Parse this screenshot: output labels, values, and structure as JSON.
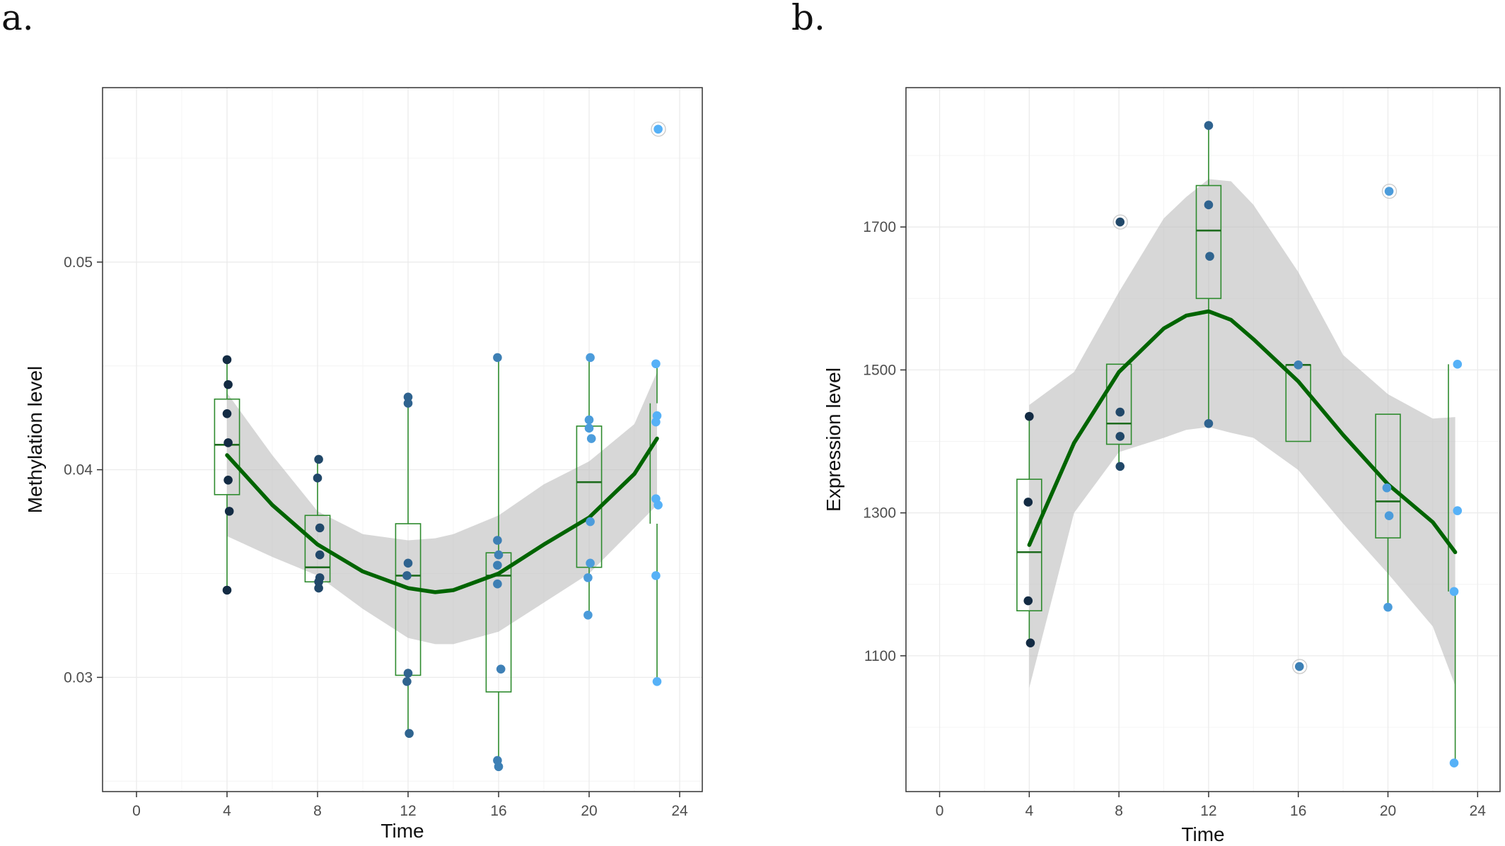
{
  "chart_data": [
    {
      "type": "scatter",
      "panel_label": "a.",
      "xlabel": "Time",
      "ylabel": "Methylation level",
      "xlim": [
        -1.5,
        25
      ],
      "ylim": [
        0.0245,
        0.0584
      ],
      "x_ticks": [
        0,
        4,
        8,
        12,
        16,
        20,
        24
      ],
      "y_ticks": [
        0.03,
        0.04,
        0.05
      ],
      "y_tick_labels": [
        "0.03",
        "0.04",
        "0.05"
      ],
      "grid": true,
      "boxplots": [
        {
          "x": 4,
          "low": 0.0342,
          "q1": 0.0388,
          "median": 0.0412,
          "q3": 0.0434,
          "high": 0.0453
        },
        {
          "x": 8,
          "low": 0.0343,
          "q1": 0.0346,
          "median": 0.0353,
          "q3": 0.0378,
          "high": 0.0405
        },
        {
          "x": 12,
          "low": 0.0273,
          "q1": 0.0301,
          "median": 0.0349,
          "q3": 0.0374,
          "high": 0.0435
        },
        {
          "x": 16,
          "low": 0.0257,
          "q1": 0.0293,
          "median": 0.0349,
          "q3": 0.036,
          "high": 0.0454
        },
        {
          "x": 20,
          "low": 0.033,
          "q1": 0.0353,
          "median": 0.0394,
          "q3": 0.0421,
          "high": 0.0453
        },
        {
          "x": 23,
          "low": 0.0298,
          "q1": 0.0374,
          "median": 0.0385,
          "q3": 0.0432,
          "high": 0.0451
        }
      ],
      "outliers": [
        {
          "x": 23,
          "y": 0.0564
        }
      ],
      "points": [
        {
          "x": 4.0,
          "y": 0.0453
        },
        {
          "x": 4.05,
          "y": 0.0441
        },
        {
          "x": 4.0,
          "y": 0.0427
        },
        {
          "x": 4.05,
          "y": 0.0413
        },
        {
          "x": 4.05,
          "y": 0.0395
        },
        {
          "x": 4.1,
          "y": 0.038
        },
        {
          "x": 4.0,
          "y": 0.0342
        },
        {
          "x": 8.05,
          "y": 0.0405
        },
        {
          "x": 8.0,
          "y": 0.0396
        },
        {
          "x": 8.1,
          "y": 0.0372
        },
        {
          "x": 8.1,
          "y": 0.0359
        },
        {
          "x": 8.1,
          "y": 0.0348
        },
        {
          "x": 8.05,
          "y": 0.0346
        },
        {
          "x": 8.05,
          "y": 0.0343
        },
        {
          "x": 12.0,
          "y": 0.0435
        },
        {
          "x": 12.0,
          "y": 0.0432
        },
        {
          "x": 12.0,
          "y": 0.0355
        },
        {
          "x": 11.95,
          "y": 0.0349
        },
        {
          "x": 12.0,
          "y": 0.0302
        },
        {
          "x": 11.95,
          "y": 0.0298
        },
        {
          "x": 12.05,
          "y": 0.0273
        },
        {
          "x": 15.95,
          "y": 0.0454
        },
        {
          "x": 15.95,
          "y": 0.0366
        },
        {
          "x": 16.0,
          "y": 0.0359
        },
        {
          "x": 15.95,
          "y": 0.0354
        },
        {
          "x": 15.95,
          "y": 0.0345
        },
        {
          "x": 16.1,
          "y": 0.0304
        },
        {
          "x": 15.95,
          "y": 0.026
        },
        {
          "x": 16.0,
          "y": 0.0257
        },
        {
          "x": 20.05,
          "y": 0.0454
        },
        {
          "x": 20.0,
          "y": 0.0424
        },
        {
          "x": 20.0,
          "y": 0.042
        },
        {
          "x": 20.1,
          "y": 0.0415
        },
        {
          "x": 20.05,
          "y": 0.0375
        },
        {
          "x": 20.05,
          "y": 0.0355
        },
        {
          "x": 19.95,
          "y": 0.0348
        },
        {
          "x": 19.95,
          "y": 0.033
        },
        {
          "x": 23.05,
          "y": 0.0564
        },
        {
          "x": 22.95,
          "y": 0.0451
        },
        {
          "x": 23.0,
          "y": 0.0426
        },
        {
          "x": 22.95,
          "y": 0.0423
        },
        {
          "x": 22.95,
          "y": 0.0386
        },
        {
          "x": 23.05,
          "y": 0.0383
        },
        {
          "x": 22.95,
          "y": 0.0349
        },
        {
          "x": 23.0,
          "y": 0.0298
        }
      ],
      "smooth": {
        "x": [
          4,
          6,
          8,
          10,
          12,
          13.2,
          14,
          16,
          18,
          20,
          22,
          23
        ],
        "y": [
          0.0407,
          0.0383,
          0.0364,
          0.0351,
          0.0343,
          0.0341,
          0.0342,
          0.035,
          0.0364,
          0.0377,
          0.0398,
          0.0415
        ],
        "upper": [
          0.0437,
          0.0407,
          0.038,
          0.0369,
          0.0366,
          0.0367,
          0.0369,
          0.0378,
          0.0393,
          0.0404,
          0.0422,
          0.0447
        ],
        "lower": [
          0.0368,
          0.0358,
          0.0349,
          0.0333,
          0.0319,
          0.0316,
          0.0316,
          0.0322,
          0.0336,
          0.035,
          0.0372,
          0.0383
        ]
      },
      "colors": {
        "smooth": "#006400",
        "band": "#bdbdbd",
        "box": "#2e8b2e",
        "point_early": "#132b43",
        "point_late": "#56b1f7"
      }
    },
    {
      "type": "scatter",
      "panel_label": "b.",
      "xlabel": "Time",
      "ylabel": "Expression level",
      "xlim": [
        -1.5,
        25
      ],
      "ylim": [
        910,
        1895
      ],
      "x_ticks": [
        0,
        4,
        8,
        12,
        16,
        20,
        24
      ],
      "y_ticks": [
        1100,
        1300,
        1500,
        1700
      ],
      "y_tick_labels": [
        "1100",
        "1300",
        "1500",
        "1700"
      ],
      "grid": true,
      "boxplots": [
        {
          "x": 4,
          "low": 1118,
          "q1": 1163,
          "median": 1245,
          "q3": 1347,
          "high": 1435
        },
        {
          "x": 8,
          "low": 1365,
          "q1": 1396,
          "median": 1425,
          "q3": 1508,
          "high": 1508
        },
        {
          "x": 12,
          "low": 1425,
          "q1": 1600,
          "median": 1695,
          "q3": 1758,
          "high": 1842
        },
        {
          "x": 16,
          "low": 1400,
          "q1": 1400,
          "median": 1507,
          "q3": 1507,
          "high": 1507
        },
        {
          "x": 20,
          "low": 1168,
          "q1": 1265,
          "median": 1316,
          "q3": 1438,
          "high": 1438
        },
        {
          "x": 23,
          "low": 950,
          "q1": 1190,
          "median": 1303,
          "q3": 1508,
          "high": 1508
        }
      ],
      "outliers": [
        {
          "x": 8,
          "y": 1707
        },
        {
          "x": 20,
          "y": 1750
        },
        {
          "x": 16,
          "y": 1085
        }
      ],
      "points": [
        {
          "x": 4.0,
          "y": 1435
        },
        {
          "x": 3.95,
          "y": 1315
        },
        {
          "x": 3.95,
          "y": 1177
        },
        {
          "x": 4.05,
          "y": 1118
        },
        {
          "x": 8.05,
          "y": 1707
        },
        {
          "x": 8.05,
          "y": 1441
        },
        {
          "x": 8.05,
          "y": 1407
        },
        {
          "x": 8.05,
          "y": 1365
        },
        {
          "x": 12.0,
          "y": 1842
        },
        {
          "x": 12.0,
          "y": 1731
        },
        {
          "x": 12.05,
          "y": 1659
        },
        {
          "x": 12.0,
          "y": 1425
        },
        {
          "x": 16.0,
          "y": 1507
        },
        {
          "x": 16.05,
          "y": 1085
        },
        {
          "x": 20.05,
          "y": 1750
        },
        {
          "x": 19.95,
          "y": 1335
        },
        {
          "x": 20.05,
          "y": 1296
        },
        {
          "x": 20.0,
          "y": 1168
        },
        {
          "x": 23.1,
          "y": 1508
        },
        {
          "x": 23.1,
          "y": 1303
        },
        {
          "x": 22.95,
          "y": 1190
        },
        {
          "x": 22.95,
          "y": 950
        }
      ],
      "smooth": {
        "x": [
          4,
          6,
          8,
          10,
          11,
          12,
          13,
          14,
          16,
          18,
          20,
          22,
          23
        ],
        "y": [
          1255,
          1398,
          1497,
          1558,
          1576,
          1582,
          1570,
          1543,
          1484,
          1409,
          1340,
          1287,
          1245
        ],
        "upper": [
          1451,
          1497,
          1609,
          1712,
          1742,
          1767,
          1764,
          1731,
          1637,
          1521,
          1466,
          1432,
          1434
        ],
        "lower": [
          1055,
          1300,
          1385,
          1405,
          1416,
          1420,
          1412,
          1405,
          1360,
          1285,
          1215,
          1141,
          1058
        ]
      },
      "colors": {
        "smooth": "#006400",
        "band": "#bdbdbd",
        "box": "#2e8b2e",
        "point_early": "#132b43",
        "point_late": "#56b1f7"
      }
    }
  ]
}
